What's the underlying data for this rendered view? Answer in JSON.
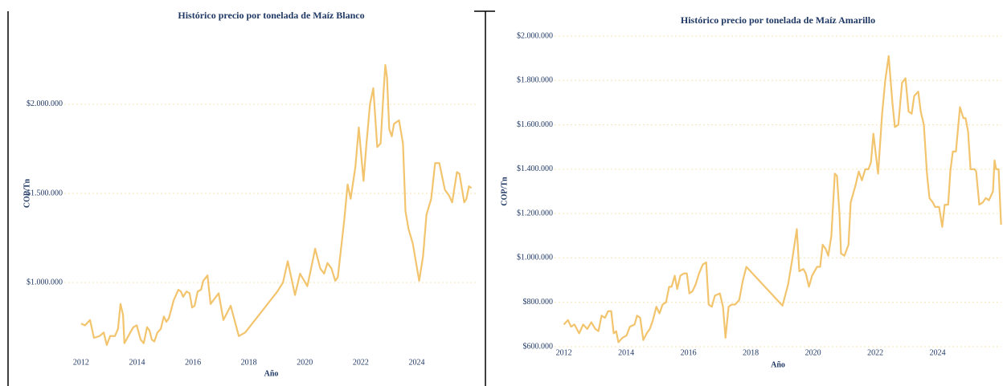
{
  "chart_data": [
    {
      "type": "line",
      "title": "Histórico precio por tonelada de Maíz Blanco",
      "x_label": "Año",
      "y_label": "COP/Tn",
      "xlim": [
        2011.4,
        2026.2
      ],
      "xticks": [
        2012,
        2014,
        2016,
        2018,
        2020,
        2022,
        2024
      ],
      "ylim": [
        600000,
        2400000
      ],
      "yticks": [
        {
          "value": 1000000,
          "label": "$1.000.000"
        },
        {
          "value": 1500000,
          "label": "$1.500.000"
        },
        {
          "value": 2000000,
          "label": "$2.000.000"
        }
      ],
      "grid": true,
      "x": [
        2012,
        2012.14,
        2012.32,
        2012.46,
        2012.66,
        2012.81,
        2012.92,
        2013.04,
        2013.21,
        2013.32,
        2013.41,
        2013.5,
        2013.55,
        2013.76,
        2013.87,
        2013.99,
        2014.13,
        2014.24,
        2014.36,
        2014.45,
        2014.53,
        2014.62,
        2014.73,
        2014.85,
        2014.96,
        2015.05,
        2015.14,
        2015.31,
        2015.48,
        2015.57,
        2015.65,
        2015.77,
        2015.88,
        2015.97,
        2016.06,
        2016.17,
        2016.29,
        2016.37,
        2016.52,
        2016.63,
        2016.92,
        2017.09,
        2017.35,
        2017.64,
        2017.87,
        2019.02,
        2019.22,
        2019.39,
        2019.65,
        2019.83,
        2020.09,
        2020.2,
        2020.37,
        2020.55,
        2020.69,
        2020.81,
        2020.95,
        2021.09,
        2021.18,
        2021.41,
        2021.53,
        2021.64,
        2021.81,
        2021.93,
        2022.1,
        2022.19,
        2022.33,
        2022.45,
        2022.59,
        2022.71,
        2022.82,
        2022.88,
        2022.94,
        2023.02,
        2023.11,
        2023.19,
        2023.37,
        2023.51,
        2023.6,
        2023.71,
        2023.86,
        2024.09,
        2024.23,
        2024.35,
        2024.52,
        2024.66,
        2024.81,
        2025.01,
        2025.15,
        2025.27,
        2025.44,
        2025.53,
        2025.7,
        2025.78,
        2025.87,
        2025.96
      ],
      "series": [
        {
          "name": "COP/Tn",
          "color": "#f2c46d",
          "values": [
            770000,
            760000,
            790000,
            690000,
            700000,
            720000,
            650000,
            700000,
            700000,
            740000,
            880000,
            820000,
            660000,
            720000,
            750000,
            760000,
            680000,
            660000,
            750000,
            730000,
            680000,
            670000,
            720000,
            740000,
            810000,
            780000,
            800000,
            900000,
            960000,
            950000,
            920000,
            950000,
            940000,
            860000,
            870000,
            950000,
            960000,
            1010000,
            1040000,
            880000,
            940000,
            790000,
            870000,
            700000,
            720000,
            950000,
            1000000,
            1120000,
            930000,
            1050000,
            980000,
            1060000,
            1190000,
            1080000,
            1050000,
            1110000,
            1080000,
            1010000,
            1030000,
            1350000,
            1550000,
            1470000,
            1650000,
            1870000,
            1570000,
            1750000,
            2000000,
            2090000,
            1760000,
            1780000,
            2080000,
            2220000,
            2150000,
            1860000,
            1820000,
            1890000,
            1910000,
            1780000,
            1400000,
            1300000,
            1220000,
            1010000,
            1150000,
            1380000,
            1470000,
            1670000,
            1670000,
            1520000,
            1490000,
            1450000,
            1620000,
            1610000,
            1450000,
            1470000,
            1540000,
            1530000
          ]
        }
      ]
    },
    {
      "type": "line",
      "title": "Histórico precio por tonelada de Maíz Amarillo",
      "x_label": "Año",
      "y_label": "COP/Tn",
      "xlim": [
        2011.7,
        2026.05
      ],
      "xticks": [
        2012,
        2014,
        2016,
        2018,
        2020,
        2022,
        2024
      ],
      "ylim": [
        600000,
        2000000
      ],
      "yticks": [
        {
          "value": 600000,
          "label": "$600.000"
        },
        {
          "value": 800000,
          "label": "$800.000"
        },
        {
          "value": 1000000,
          "label": "$1.000.000"
        },
        {
          "value": 1200000,
          "label": "$1.200.000"
        },
        {
          "value": 1400000,
          "label": "$1.400.000"
        },
        {
          "value": 1600000,
          "label": "$1.600.000"
        },
        {
          "value": 1800000,
          "label": "$1.800.000"
        },
        {
          "value": 2000000,
          "label": "$2.000.000"
        }
      ],
      "grid": true,
      "x": [
        2012,
        2012.13,
        2012.23,
        2012.34,
        2012.49,
        2012.62,
        2012.75,
        2012.88,
        2013.01,
        2013.11,
        2013.21,
        2013.32,
        2013.42,
        2013.52,
        2013.6,
        2013.68,
        2013.75,
        2013.88,
        2014.01,
        2014.12,
        2014.27,
        2014.35,
        2014.45,
        2014.55,
        2014.66,
        2014.76,
        2014.86,
        2014.97,
        2015.07,
        2015.17,
        2015.28,
        2015.38,
        2015.46,
        2015.56,
        2015.64,
        2015.74,
        2015.85,
        2015.95,
        2016.03,
        2016.13,
        2016.23,
        2016.34,
        2016.46,
        2016.57,
        2016.65,
        2016.75,
        2016.85,
        2017.01,
        2017.11,
        2017.19,
        2017.29,
        2017.39,
        2017.5,
        2017.63,
        2017.75,
        2017.86,
        2019.02,
        2019.2,
        2019.33,
        2019.48,
        2019.56,
        2019.69,
        2019.77,
        2019.87,
        2019.97,
        2020.13,
        2020.23,
        2020.31,
        2020.41,
        2020.49,
        2020.59,
        2020.7,
        2020.77,
        2020.85,
        2020.9,
        2021.01,
        2021.14,
        2021.21,
        2021.37,
        2021.47,
        2021.57,
        2021.68,
        2021.78,
        2021.86,
        2021.94,
        2022.09,
        2022.22,
        2022.32,
        2022.43,
        2022.55,
        2022.63,
        2022.74,
        2022.86,
        2022.97,
        2023.07,
        2023.17,
        2023.25,
        2023.38,
        2023.46,
        2023.56,
        2023.66,
        2023.74,
        2023.85,
        2023.92,
        2024.05,
        2024.15,
        2024.23,
        2024.34,
        2024.41,
        2024.49,
        2024.59,
        2024.72,
        2024.83,
        2024.9,
        2024.98,
        2025.06,
        2025.19,
        2025.24,
        2025.34,
        2025.45,
        2025.55,
        2025.65,
        2025.78,
        2025.83,
        2025.88,
        2025.96,
        2026.04
      ],
      "series": [
        {
          "name": "COP/Tn",
          "color": "#f2c46d",
          "values": [
            700000,
            720000,
            690000,
            700000,
            660000,
            700000,
            680000,
            710000,
            680000,
            670000,
            740000,
            730000,
            760000,
            760000,
            660000,
            670000,
            620000,
            640000,
            650000,
            690000,
            700000,
            740000,
            730000,
            630000,
            660000,
            680000,
            720000,
            780000,
            750000,
            790000,
            800000,
            870000,
            870000,
            920000,
            860000,
            920000,
            930000,
            930000,
            840000,
            850000,
            880000,
            930000,
            970000,
            980000,
            790000,
            780000,
            830000,
            840000,
            780000,
            640000,
            780000,
            790000,
            790000,
            810000,
            900000,
            960000,
            785000,
            880000,
            990000,
            1130000,
            940000,
            950000,
            930000,
            870000,
            920000,
            960000,
            960000,
            1060000,
            1040000,
            1010000,
            1100000,
            1380000,
            1370000,
            1200000,
            1020000,
            1010000,
            1060000,
            1250000,
            1330000,
            1390000,
            1350000,
            1400000,
            1400000,
            1430000,
            1560000,
            1380000,
            1650000,
            1800000,
            1910000,
            1700000,
            1590000,
            1600000,
            1790000,
            1810000,
            1660000,
            1650000,
            1730000,
            1750000,
            1660000,
            1600000,
            1380000,
            1270000,
            1250000,
            1230000,
            1230000,
            1140000,
            1240000,
            1240000,
            1390000,
            1480000,
            1480000,
            1680000,
            1630000,
            1630000,
            1570000,
            1400000,
            1400000,
            1390000,
            1240000,
            1250000,
            1270000,
            1260000,
            1300000,
            1440000,
            1400000,
            1400000,
            1150000
          ]
        }
      ]
    }
  ]
}
